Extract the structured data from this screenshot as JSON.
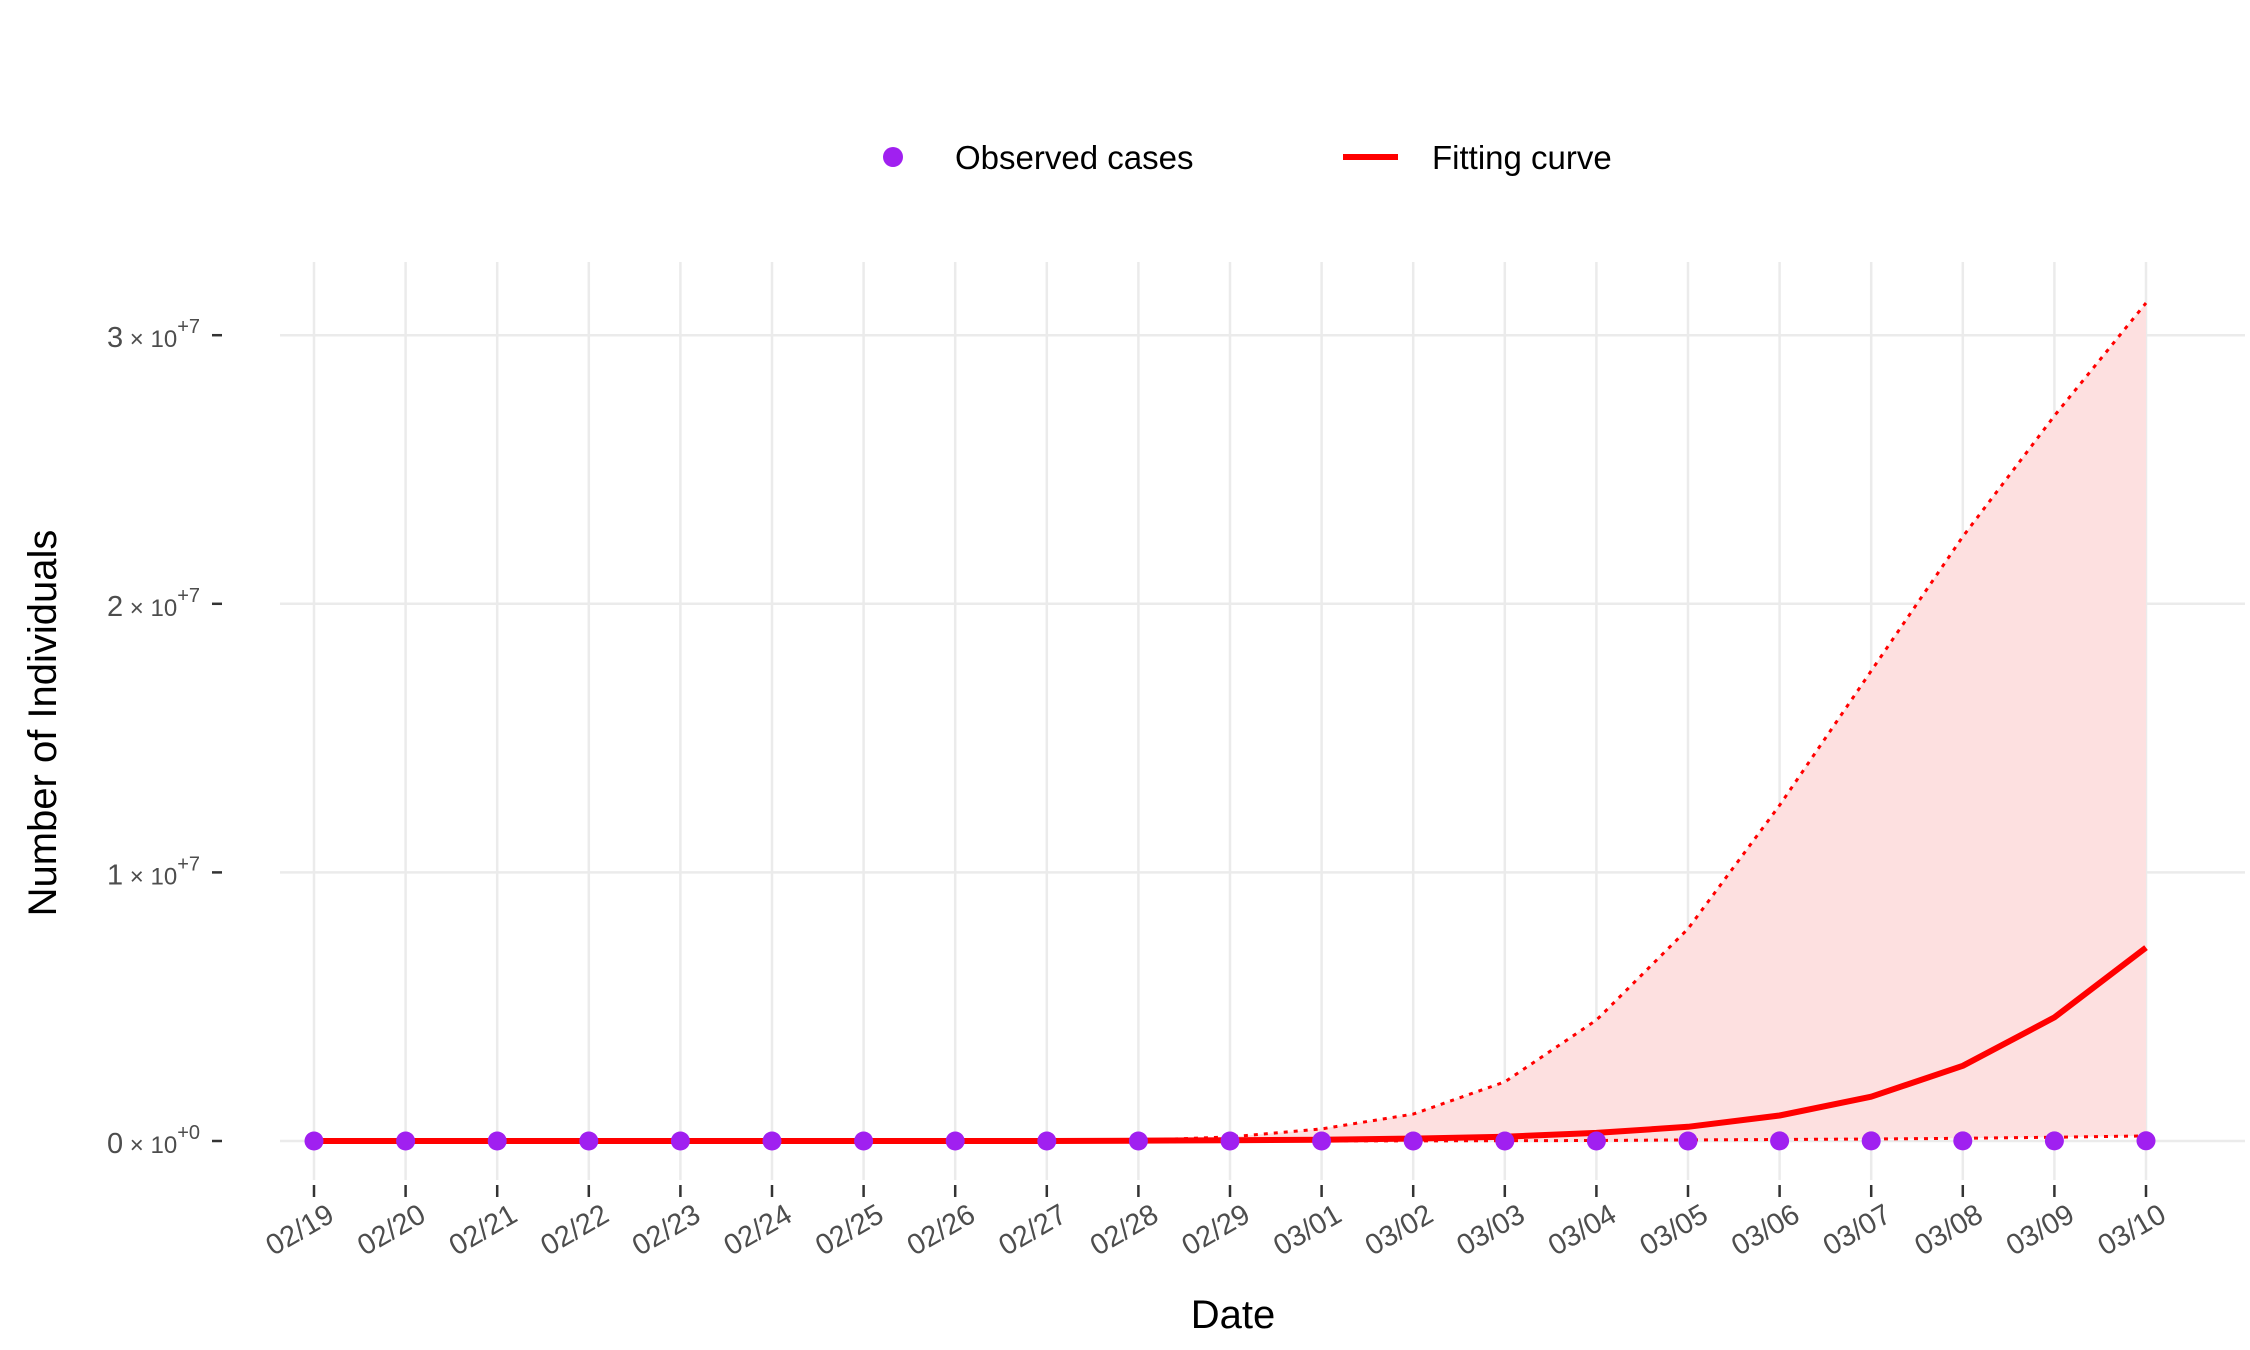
{
  "chart_data": {
    "type": "line",
    "xlabel": "Date",
    "ylabel": "Number of Individuals",
    "categories": [
      "02/19",
      "02/20",
      "02/21",
      "02/22",
      "02/23",
      "02/24",
      "02/25",
      "02/26",
      "02/27",
      "02/28",
      "02/29",
      "03/01",
      "03/02",
      "03/03",
      "03/04",
      "03/05",
      "03/06",
      "03/07",
      "03/08",
      "03/09",
      "03/10"
    ],
    "ylim": [
      -1200000,
      32000000
    ],
    "yticks": [
      {
        "value": 0,
        "mantissa": "0",
        "exponent": "+0"
      },
      {
        "value": 10000000,
        "mantissa": "1",
        "exponent": "+7"
      },
      {
        "value": 20000000,
        "mantissa": "2",
        "exponent": "+7"
      },
      {
        "value": 30000000,
        "mantissa": "3",
        "exponent": "+7"
      }
    ],
    "tick_times": "×10",
    "grid": true,
    "legend_position": "top",
    "series": [
      {
        "name": "Observed cases",
        "kind": "points",
        "color": "#a020f0",
        "values": [
          1,
          2,
          3,
          5,
          7,
          11,
          20,
          40,
          100,
          200,
          350,
          500,
          700,
          1000,
          1400,
          1800,
          2500,
          3200,
          4000,
          5000,
          6000
        ]
      },
      {
        "name": "Fitting curve",
        "kind": "line",
        "color": "#ff0000",
        "values": [
          0,
          0,
          0,
          0,
          0,
          0,
          0,
          0,
          0,
          10000,
          25000,
          50000,
          90000,
          160000,
          300000,
          530000,
          950000,
          1650000,
          2800000,
          4600000,
          7200000
        ]
      },
      {
        "kind": "band-upper",
        "color": "#ff0000",
        "values": [
          0,
          0,
          0,
          0,
          0,
          0,
          0,
          0,
          0,
          30000,
          150000,
          450000,
          1000000,
          2200000,
          4500000,
          7900000,
          12500000,
          17500000,
          22500000,
          27000000,
          31200000
        ]
      },
      {
        "kind": "band-lower",
        "color": "#ff0000",
        "values": [
          0,
          0,
          0,
          0,
          0,
          0,
          0,
          0,
          0,
          0,
          0,
          2000,
          5000,
          10000,
          20000,
          40000,
          55000,
          75000,
          100000,
          140000,
          190000
        ]
      }
    ],
    "band_fill": "#fde0e0"
  }
}
